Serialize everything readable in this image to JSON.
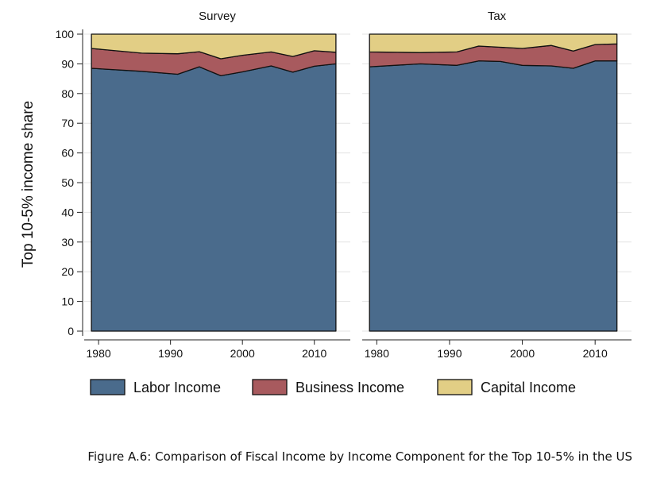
{
  "chart_data": {
    "type": "area",
    "stacked": true,
    "ylabel": "Top 10-5% income share",
    "ylim": [
      0,
      100
    ],
    "yticks": [
      0,
      10,
      20,
      30,
      40,
      50,
      60,
      70,
      80,
      90,
      100
    ],
    "xlim": [
      1978,
      2015
    ],
    "xticks": [
      1980,
      1990,
      2000,
      2010
    ],
    "grid": true,
    "legend_position": "bottom",
    "legend": [
      {
        "name": "Labor Income",
        "color": "#4a6b8c"
      },
      {
        "name": "Business Income",
        "color": "#a85a5e"
      },
      {
        "name": "Capital Income",
        "color": "#e2ce85"
      }
    ],
    "panels": [
      {
        "title": "Survey",
        "x": [
          1979,
          1986,
          1991,
          1994,
          1997,
          2000,
          2004,
          2007,
          2010,
          2013
        ],
        "series": [
          {
            "name": "Labor Income",
            "values": [
              88.5,
              87.5,
              86.5,
              89.0,
              86.0,
              87.3,
              89.3,
              87.2,
              89.2,
              90.0
            ]
          },
          {
            "name": "Business Income",
            "values": [
              6.7,
              6.1,
              6.9,
              5.1,
              5.7,
              5.6,
              4.7,
              5.3,
              5.2,
              3.9
            ]
          },
          {
            "name": "Capital Income",
            "values": [
              4.8,
              6.4,
              6.6,
              5.9,
              8.3,
              7.1,
              6.0,
              7.5,
              5.6,
              6.1
            ]
          }
        ]
      },
      {
        "title": "Tax",
        "x": [
          1979,
          1986,
          1991,
          1994,
          1997,
          2000,
          2004,
          2007,
          2010,
          2013
        ],
        "series": [
          {
            "name": "Labor Income",
            "values": [
              89.0,
              90.0,
              89.5,
              91.0,
              90.8,
              89.5,
              89.3,
              88.5,
              91.0,
              91.0
            ]
          },
          {
            "name": "Business Income",
            "values": [
              5.0,
              3.8,
              4.5,
              5.0,
              4.8,
              5.7,
              6.9,
              5.8,
              5.5,
              5.7
            ]
          },
          {
            "name": "Capital Income",
            "values": [
              6.0,
              6.2,
              6.0,
              4.0,
              4.4,
              4.8,
              3.8,
              5.7,
              3.5,
              3.3
            ]
          }
        ]
      }
    ]
  },
  "caption": "Figure A.6: Comparison of Fiscal Income by Income Component for the Top 10-5% in the US"
}
